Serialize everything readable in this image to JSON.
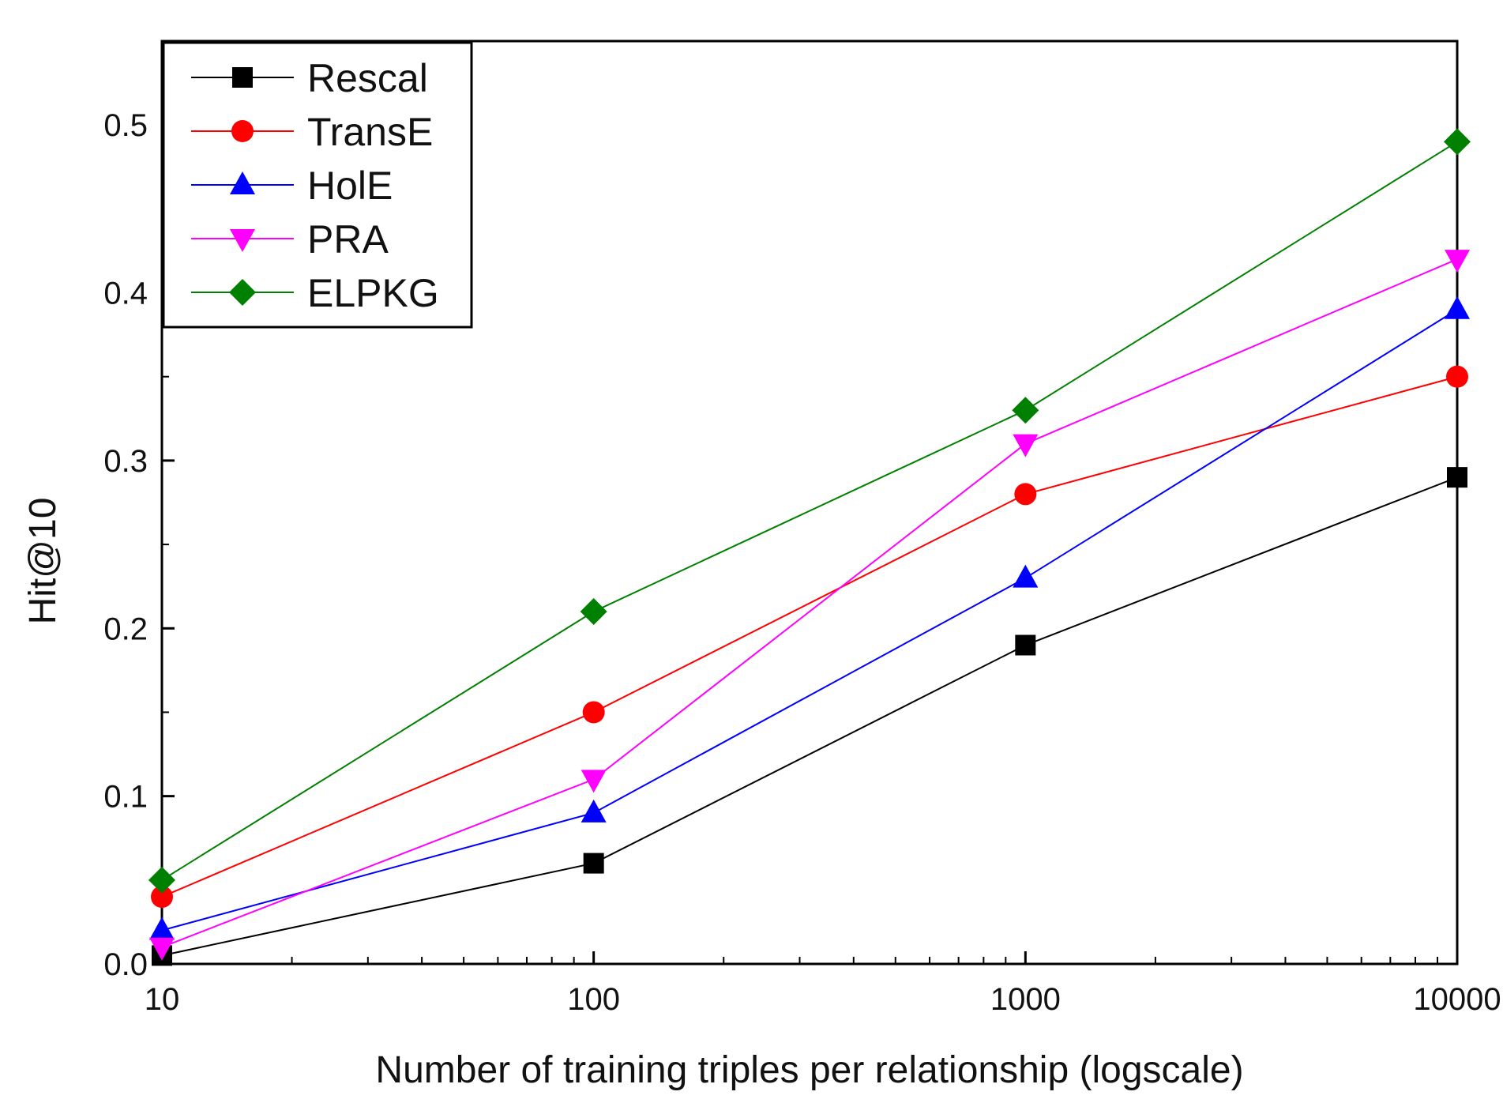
{
  "chart_data": {
    "type": "line",
    "title": "",
    "xlabel": "Number of training triples per relationship (logscale)",
    "ylabel": "Hit@10",
    "x_scale": "log",
    "x": [
      10,
      100,
      1000,
      10000
    ],
    "x_tick_labels": [
      "10",
      "100",
      "1000",
      "10000"
    ],
    "xlim": [
      10,
      10000
    ],
    "ylim": [
      0.0,
      0.55
    ],
    "y_ticks": [
      0.0,
      0.1,
      0.2,
      0.3,
      0.4,
      0.5
    ],
    "y_tick_labels": [
      "0.0",
      "0.1",
      "0.2",
      "0.3",
      "0.4",
      "0.5"
    ],
    "legend_position": "top-left",
    "grid": false,
    "series": [
      {
        "name": "Rescal",
        "color": "#000000",
        "marker": "square",
        "values": [
          0.005,
          0.06,
          0.19,
          0.29
        ]
      },
      {
        "name": "TransE",
        "color": "#ff0000",
        "marker": "circle",
        "values": [
          0.04,
          0.15,
          0.28,
          0.35
        ]
      },
      {
        "name": "HolE",
        "color": "#0000ff",
        "marker": "triangle-up",
        "values": [
          0.02,
          0.09,
          0.23,
          0.39
        ]
      },
      {
        "name": "PRA",
        "color": "#ff00ff",
        "marker": "triangle-down",
        "values": [
          0.01,
          0.11,
          0.31,
          0.42
        ]
      },
      {
        "name": "ELPKG",
        "color": "#008000",
        "marker": "diamond",
        "values": [
          0.05,
          0.21,
          0.33,
          0.49
        ]
      }
    ]
  }
}
